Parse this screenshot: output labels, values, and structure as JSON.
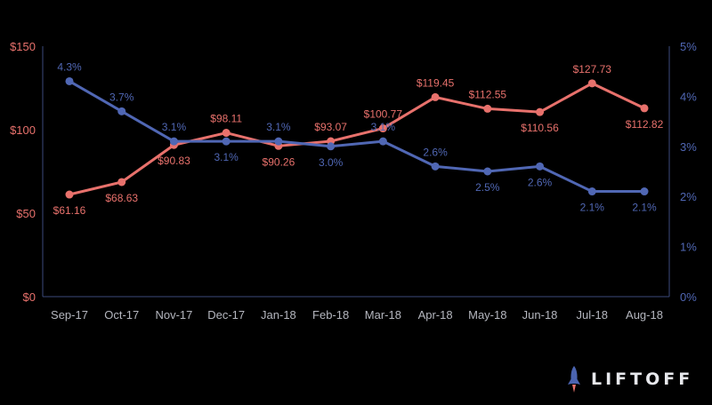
{
  "chart_data": {
    "type": "line",
    "categories": [
      "Sep-17",
      "Oct-17",
      "Nov-17",
      "Dec-17",
      "Jan-18",
      "Feb-18",
      "Mar-18",
      "Apr-18",
      "May-18",
      "Jun-18",
      "Jul-18",
      "Aug-18"
    ],
    "series": [
      {
        "axis": "left",
        "color": "#e8716c",
        "values": [
          61.16,
          68.63,
          90.83,
          98.11,
          90.26,
          93.07,
          100.77,
          119.45,
          112.55,
          110.56,
          127.73,
          112.82
        ],
        "labels": [
          "$61.16",
          "$68.63",
          "$90.83",
          "$98.11",
          "$90.26",
          "$93.07",
          "$100.77",
          "$119.45",
          "$112.55",
          "$110.56",
          "$127.73",
          "$112.82"
        ]
      },
      {
        "axis": "right",
        "color": "#5067b4",
        "values": [
          4.3,
          3.7,
          3.1,
          3.1,
          3.1,
          3.0,
          3.1,
          2.6,
          2.5,
          2.6,
          2.1,
          2.1
        ],
        "labels": [
          "4.3%",
          "3.7%",
          "3.1%",
          "3.1%",
          "3.1%",
          "3.0%",
          "3.1%",
          "2.6%",
          "2.5%",
          "2.6%",
          "2.1%",
          "2.1%"
        ]
      }
    ],
    "y_left": {
      "ylim": [
        0,
        150
      ],
      "ticks": [
        0,
        50,
        100,
        150
      ],
      "tick_labels": [
        "$0",
        "$50",
        "$100",
        "$150"
      ],
      "color": "#e8716c"
    },
    "y_right": {
      "ylim": [
        0,
        5
      ],
      "ticks": [
        0,
        1,
        2,
        3,
        4,
        5
      ],
      "tick_labels": [
        "0%",
        "1%",
        "2%",
        "3%",
        "4%",
        "5%"
      ],
      "color": "#5067b4"
    },
    "x_tick_color": "#b5b7bf",
    "axis_color": "#3b4a7c",
    "grid": false,
    "title": "",
    "xlabel": "",
    "ylabel": ""
  },
  "branding": {
    "logo_text": "LIFTOFF",
    "logo_icon": "rocket-icon"
  }
}
